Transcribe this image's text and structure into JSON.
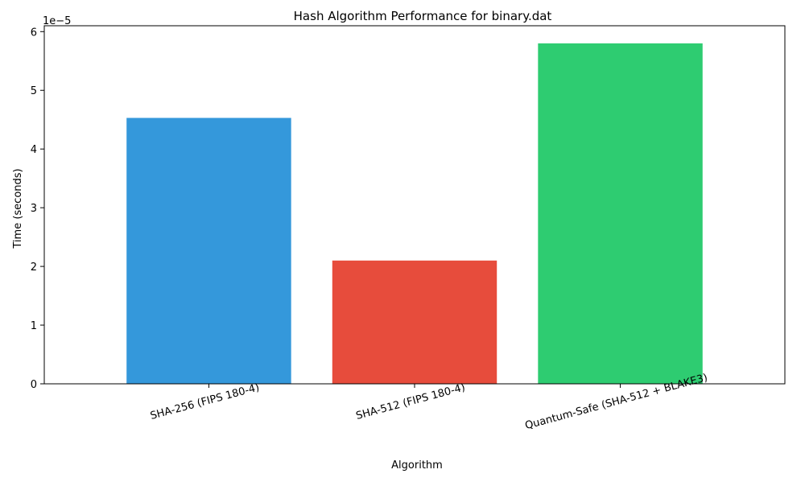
{
  "chart_data": {
    "type": "bar",
    "title": "Hash Algorithm Performance for binary.dat",
    "xlabel": "Algorithm",
    "ylabel": "Time (seconds)",
    "y_offset_label": "1e−5",
    "categories": [
      "SHA-256 (FIPS 180-4)",
      "SHA-512 (FIPS 180-4)",
      "Quantum-Safe (SHA-512 + BLAKE3)"
    ],
    "values": [
      4.53e-05,
      2.1e-05,
      5.8e-05
    ],
    "colors": [
      "#3498db",
      "#e74c3c",
      "#2ecc71"
    ],
    "ylim": [
      0,
      6.1e-05
    ],
    "yticks": [
      0,
      1e-05,
      2e-05,
      3e-05,
      4e-05,
      5e-05,
      6e-05
    ],
    "ytick_labels": [
      "0",
      "1",
      "2",
      "3",
      "4",
      "5",
      "6"
    ],
    "grid": false,
    "legend": false
  }
}
